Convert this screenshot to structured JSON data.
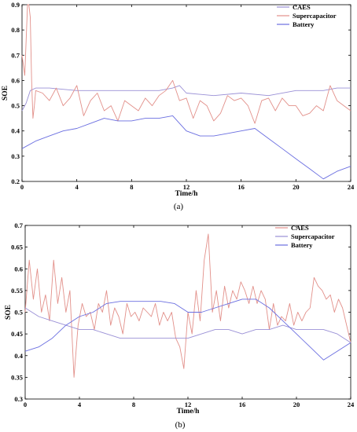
{
  "chart_data": [
    {
      "type": "line",
      "caption": "(a)",
      "xlabel": "Time/h",
      "ylabel": "SOE",
      "xlim": [
        0,
        24
      ],
      "ylim": [
        0.2,
        0.9
      ],
      "xticks": [
        0,
        4,
        8,
        12,
        16,
        20,
        24
      ],
      "yticks": [
        0.2,
        0.3,
        0.4,
        0.5,
        0.6,
        0.7,
        0.8,
        0.9
      ],
      "legend_position": "top-right",
      "series": [
        {
          "name": "CAES",
          "color": "#9a90d6",
          "x": [
            0,
            0.3,
            0.6,
            1,
            2,
            4,
            6,
            8,
            10,
            11,
            11.5,
            12,
            14,
            16,
            18,
            20,
            22,
            23,
            24
          ],
          "y": [
            0.48,
            0.51,
            0.56,
            0.57,
            0.57,
            0.56,
            0.56,
            0.56,
            0.56,
            0.57,
            0.58,
            0.55,
            0.54,
            0.55,
            0.54,
            0.56,
            0.56,
            0.57,
            0.57
          ]
        },
        {
          "name": "Supercapacitor",
          "color": "#e2908a",
          "x": [
            0,
            0.2,
            0.4,
            0.5,
            0.6,
            0.7,
            0.8,
            0.9,
            1.0,
            1.5,
            2,
            2.5,
            3,
            3.5,
            4,
            4.5,
            5,
            5.5,
            6,
            6.5,
            7,
            7.5,
            8,
            8.5,
            9,
            9.5,
            10,
            10.5,
            11,
            11.5,
            12,
            12.5,
            13,
            13.5,
            14,
            14.5,
            15,
            15.5,
            16,
            16.5,
            17,
            17.5,
            18,
            18.5,
            19,
            19.5,
            20,
            20.5,
            21,
            21.5,
            22,
            22.5,
            23,
            23.5,
            24
          ],
          "y": [
            0.7,
            0.62,
            0.9,
            0.9,
            0.85,
            0.6,
            0.45,
            0.5,
            0.56,
            0.55,
            0.52,
            0.57,
            0.5,
            0.53,
            0.58,
            0.46,
            0.52,
            0.55,
            0.48,
            0.5,
            0.44,
            0.52,
            0.5,
            0.48,
            0.53,
            0.5,
            0.54,
            0.56,
            0.6,
            0.52,
            0.53,
            0.45,
            0.52,
            0.5,
            0.44,
            0.47,
            0.54,
            0.52,
            0.53,
            0.5,
            0.43,
            0.52,
            0.53,
            0.48,
            0.53,
            0.5,
            0.5,
            0.46,
            0.47,
            0.5,
            0.48,
            0.58,
            0.52,
            0.5,
            0.48
          ]
        },
        {
          "name": "Battery",
          "color": "#6a6ee0",
          "x": [
            0,
            1,
            2,
            3,
            4,
            5,
            6,
            7,
            8,
            9,
            10,
            11,
            12,
            13,
            14,
            15,
            16,
            17,
            18,
            19,
            20,
            21,
            22,
            23,
            24
          ],
          "y": [
            0.33,
            0.36,
            0.38,
            0.4,
            0.41,
            0.43,
            0.45,
            0.44,
            0.44,
            0.45,
            0.45,
            0.46,
            0.4,
            0.38,
            0.38,
            0.39,
            0.4,
            0.41,
            0.37,
            0.33,
            0.29,
            0.25,
            0.21,
            0.24,
            0.26
          ]
        }
      ]
    },
    {
      "type": "line",
      "caption": "(b)",
      "xlabel": "Time/h",
      "ylabel": "SOE",
      "xlim": [
        0,
        24
      ],
      "ylim": [
        0.3,
        0.7
      ],
      "xticks": [
        0,
        4,
        8,
        12,
        16,
        20,
        24
      ],
      "yticks": [
        0.3,
        0.35,
        0.4,
        0.45,
        0.5,
        0.55,
        0.6,
        0.65,
        0.7
      ],
      "legend_position": "top-right",
      "series": [
        {
          "name": "CAES",
          "color": "#e2908a",
          "x": [
            0,
            0.3,
            0.6,
            0.9,
            1.2,
            1.5,
            1.8,
            2.1,
            2.4,
            2.7,
            3,
            3.3,
            3.6,
            3.9,
            4.2,
            4.5,
            4.8,
            5.1,
            5.4,
            5.7,
            6,
            6.3,
            6.6,
            6.9,
            7.2,
            7.5,
            7.8,
            8.1,
            8.4,
            8.7,
            9,
            9.3,
            9.6,
            9.9,
            10.2,
            10.5,
            10.8,
            11.1,
            11.4,
            11.7,
            12,
            12.3,
            12.6,
            12.9,
            13.2,
            13.5,
            13.8,
            14.1,
            14.4,
            14.7,
            15,
            15.3,
            15.6,
            15.9,
            16.2,
            16.5,
            16.8,
            17.1,
            17.4,
            17.7,
            18,
            18.3,
            18.6,
            18.9,
            19.2,
            19.5,
            19.8,
            20.1,
            20.4,
            20.7,
            21,
            21.3,
            21.6,
            21.9,
            22.2,
            22.5,
            22.8,
            23.1,
            23.4,
            23.7,
            24
          ],
          "y": [
            0.5,
            0.62,
            0.53,
            0.6,
            0.5,
            0.54,
            0.48,
            0.62,
            0.52,
            0.58,
            0.5,
            0.55,
            0.35,
            0.47,
            0.52,
            0.49,
            0.5,
            0.46,
            0.52,
            0.5,
            0.55,
            0.47,
            0.51,
            0.49,
            0.45,
            0.52,
            0.49,
            0.5,
            0.48,
            0.51,
            0.5,
            0.49,
            0.52,
            0.47,
            0.5,
            0.48,
            0.5,
            0.44,
            0.42,
            0.37,
            0.5,
            0.45,
            0.55,
            0.48,
            0.62,
            0.68,
            0.5,
            0.55,
            0.48,
            0.56,
            0.51,
            0.55,
            0.53,
            0.57,
            0.55,
            0.52,
            0.56,
            0.52,
            0.55,
            0.53,
            0.46,
            0.52,
            0.47,
            0.49,
            0.48,
            0.52,
            0.47,
            0.5,
            0.48,
            0.5,
            0.51,
            0.58,
            0.56,
            0.55,
            0.53,
            0.54,
            0.5,
            0.53,
            0.51,
            0.47,
            0.43
          ]
        },
        {
          "name": "Supercapacitor",
          "color": "#9a90d6",
          "x": [
            0,
            1,
            2,
            3,
            4,
            5,
            6,
            7,
            8,
            9,
            10,
            11,
            12,
            13,
            14,
            15,
            16,
            17,
            18,
            19,
            20,
            21,
            22,
            23,
            24
          ],
          "y": [
            0.51,
            0.49,
            0.48,
            0.47,
            0.46,
            0.46,
            0.45,
            0.44,
            0.44,
            0.44,
            0.44,
            0.44,
            0.44,
            0.45,
            0.46,
            0.46,
            0.45,
            0.46,
            0.46,
            0.47,
            0.46,
            0.46,
            0.46,
            0.45,
            0.43
          ]
        },
        {
          "name": "Battery",
          "color": "#6a6ee0",
          "x": [
            0,
            1,
            2,
            3,
            4,
            5,
            6,
            7,
            8,
            9,
            10,
            11,
            12,
            13,
            14,
            15,
            16,
            17,
            18,
            19,
            20,
            21,
            22,
            23,
            24
          ],
          "y": [
            0.41,
            0.42,
            0.44,
            0.47,
            0.49,
            0.5,
            0.52,
            0.525,
            0.525,
            0.525,
            0.525,
            0.52,
            0.5,
            0.5,
            0.51,
            0.52,
            0.53,
            0.53,
            0.51,
            0.48,
            0.45,
            0.42,
            0.39,
            0.41,
            0.43
          ]
        }
      ]
    }
  ]
}
